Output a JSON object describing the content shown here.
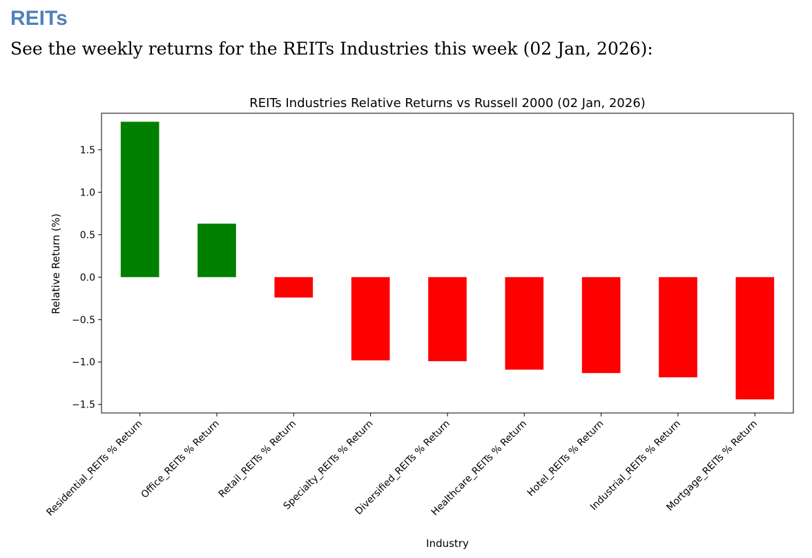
{
  "page": {
    "heading": "REITs",
    "intro": "See the weekly returns for the REITs Industries this week (02 Jan, 2026):"
  },
  "colors": {
    "positive": "#008000",
    "negative": "#ff0000",
    "heading": "#4f81bd"
  },
  "chart_data": {
    "type": "bar",
    "title": "REITs Industries Relative Returns vs Russell 2000 (02 Jan, 2026)",
    "xlabel": "Industry",
    "ylabel": "Relative Return (%)",
    "categories": [
      "Residential_REITs % Return",
      "Office_REITs % Return",
      "Retail_REITs % Return",
      "Specialty_REITs % Return",
      "Diversified_REITs % Return",
      "Healthcare_REITs % Return",
      "Hotel_REITs % Return",
      "Industrial_REITs % Return",
      "Mortgage_REITs % Return"
    ],
    "values": [
      1.83,
      0.63,
      -0.24,
      -0.98,
      -0.99,
      -1.09,
      -1.13,
      -1.18,
      -1.44
    ],
    "yticks": [
      "1.5",
      "1.0",
      "0.5",
      "0.0",
      "−0.5",
      "−1.0",
      "−1.5"
    ],
    "ylim": [
      -1.6,
      1.93
    ],
    "grid": false,
    "legend": "none"
  }
}
